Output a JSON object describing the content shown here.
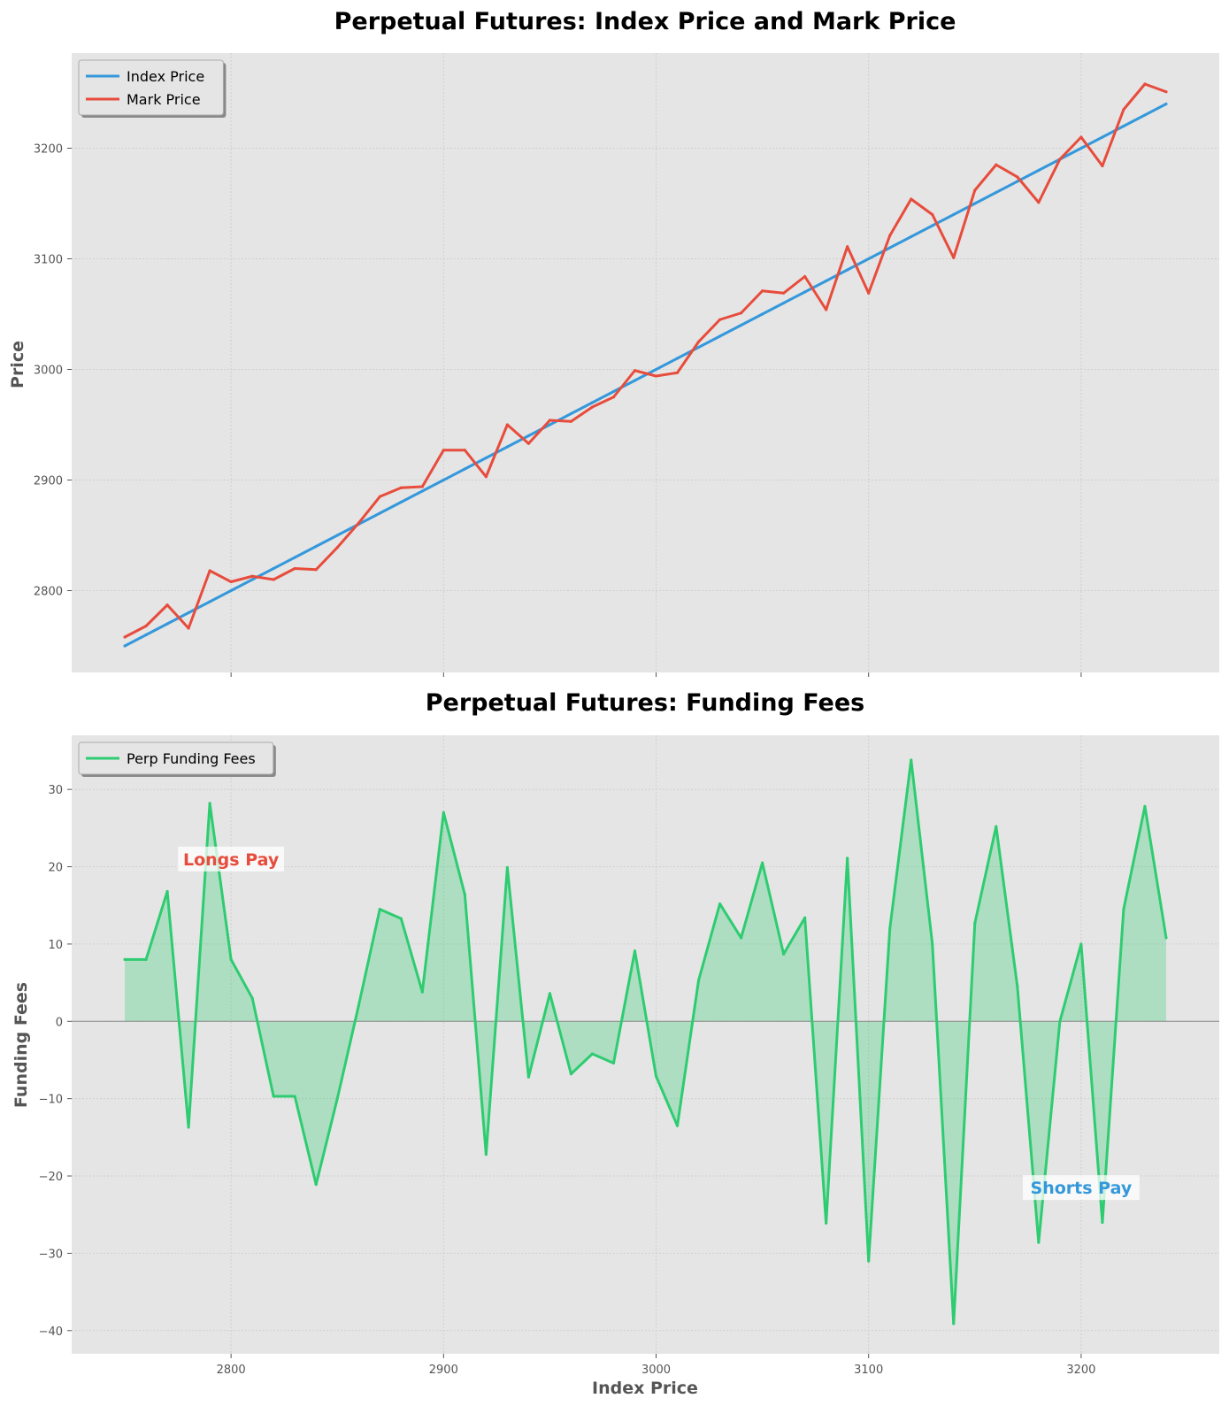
{
  "colors": {
    "index": "#3498db",
    "mark": "#e74c3c",
    "funding": "#2ecc71",
    "longs_pay": "#e74c3c",
    "shorts_pay": "#3498db",
    "axes_bg": "#e5e5e5",
    "grid": "#cfcfcf"
  },
  "chart_data": [
    {
      "type": "line",
      "title": "Perpetual Futures: Index Price and Mark Price",
      "xlabel": "",
      "ylabel": "Price",
      "xlim": [
        2725,
        3265
      ],
      "ylim": [
        2726,
        3286
      ],
      "xticks": [
        2800,
        2900,
        3000,
        3100,
        3200
      ],
      "show_xtick_labels": false,
      "yticks": [
        2800,
        2900,
        3000,
        3100,
        3200
      ],
      "grid": true,
      "legend": "top-left",
      "x": [
        2750,
        2760,
        2770,
        2780,
        2790,
        2800,
        2810,
        2820,
        2830,
        2840,
        2850,
        2860,
        2870,
        2880,
        2890,
        2900,
        2910,
        2920,
        2930,
        2940,
        2950,
        2960,
        2970,
        2980,
        2990,
        3000,
        3010,
        3020,
        3030,
        3040,
        3050,
        3060,
        3070,
        3080,
        3090,
        3100,
        3110,
        3120,
        3130,
        3140,
        3150,
        3160,
        3170,
        3180,
        3190,
        3200,
        3210,
        3220,
        3230,
        3240
      ],
      "series": [
        {
          "name": "Index Price",
          "color_key": "index",
          "values": [
            2750,
            2760,
            2770,
            2780,
            2790,
            2800,
            2810,
            2820,
            2830,
            2840,
            2850,
            2860,
            2870,
            2880,
            2890,
            2900,
            2910,
            2920,
            2930,
            2940,
            2950,
            2960,
            2970,
            2980,
            2990,
            3000,
            3010,
            3020,
            3030,
            3040,
            3050,
            3060,
            3070,
            3080,
            3090,
            3100,
            3110,
            3120,
            3130,
            3140,
            3150,
            3160,
            3170,
            3180,
            3190,
            3200,
            3210,
            3220,
            3230,
            3240
          ]
        },
        {
          "name": "Mark Price",
          "color_key": "mark",
          "values": [
            2758,
            2768,
            2787,
            2766,
            2818,
            2808,
            2813,
            2810,
            2820,
            2819,
            2839,
            2861,
            2885,
            2893,
            2894,
            2927,
            2927,
            2903,
            2950,
            2933,
            2954,
            2953,
            2966,
            2975,
            2999,
            2994,
            2997,
            3025,
            3045,
            3051,
            3071,
            3069,
            3084,
            3054,
            3111,
            3069,
            3121,
            3154,
            3140,
            3101,
            3162,
            3185,
            3174,
            3151,
            3190,
            3210,
            3184,
            3235,
            3258,
            3251
          ]
        }
      ]
    },
    {
      "type": "area",
      "title": "Perpetual Futures: Funding Fees",
      "xlabel": "Index Price",
      "ylabel": "Funding Fees",
      "xlim": [
        2725,
        3265
      ],
      "ylim": [
        -43,
        37
      ],
      "xticks": [
        2800,
        2900,
        3000,
        3100,
        3200
      ],
      "show_xtick_labels": true,
      "yticks": [
        -40,
        -30,
        -20,
        -10,
        0,
        10,
        20,
        30
      ],
      "grid": true,
      "legend": "top-left",
      "zero_line": true,
      "x": [
        2750,
        2760,
        2770,
        2780,
        2790,
        2800,
        2810,
        2820,
        2830,
        2840,
        2850,
        2860,
        2870,
        2880,
        2890,
        2900,
        2910,
        2920,
        2930,
        2940,
        2950,
        2960,
        2970,
        2980,
        2990,
        3000,
        3010,
        3020,
        3030,
        3040,
        3050,
        3060,
        3070,
        3080,
        3090,
        3100,
        3110,
        3120,
        3130,
        3140,
        3150,
        3160,
        3170,
        3180,
        3190,
        3200,
        3210,
        3220,
        3230,
        3240
      ],
      "series": [
        {
          "name": "Perp Funding Fees",
          "color_key": "funding",
          "values": [
            8.0,
            8.0,
            16.8,
            -13.7,
            28.2,
            8.0,
            3.0,
            -9.7,
            -9.7,
            -21.1,
            -10.0,
            2.0,
            14.5,
            13.3,
            3.8,
            27.0,
            16.4,
            -17.2,
            19.9,
            -7.2,
            3.6,
            -6.8,
            -4.2,
            -5.4,
            9.1,
            -7.1,
            -13.5,
            5.3,
            15.2,
            10.8,
            20.5,
            8.7,
            13.4,
            -26.1,
            21.1,
            -31.0,
            12.0,
            33.8,
            10.0,
            -39.1,
            12.7,
            25.2,
            4.5,
            -28.6,
            0.0,
            10.0,
            -26.0,
            14.5,
            27.8,
            10.8
          ]
        }
      ],
      "annotations": [
        {
          "text": "Longs Pay",
          "x": 2800,
          "y": 21,
          "color_key": "longs_pay"
        },
        {
          "text": "Shorts Pay",
          "x": 3200,
          "y": -21.5,
          "color_key": "shorts_pay"
        }
      ]
    }
  ]
}
